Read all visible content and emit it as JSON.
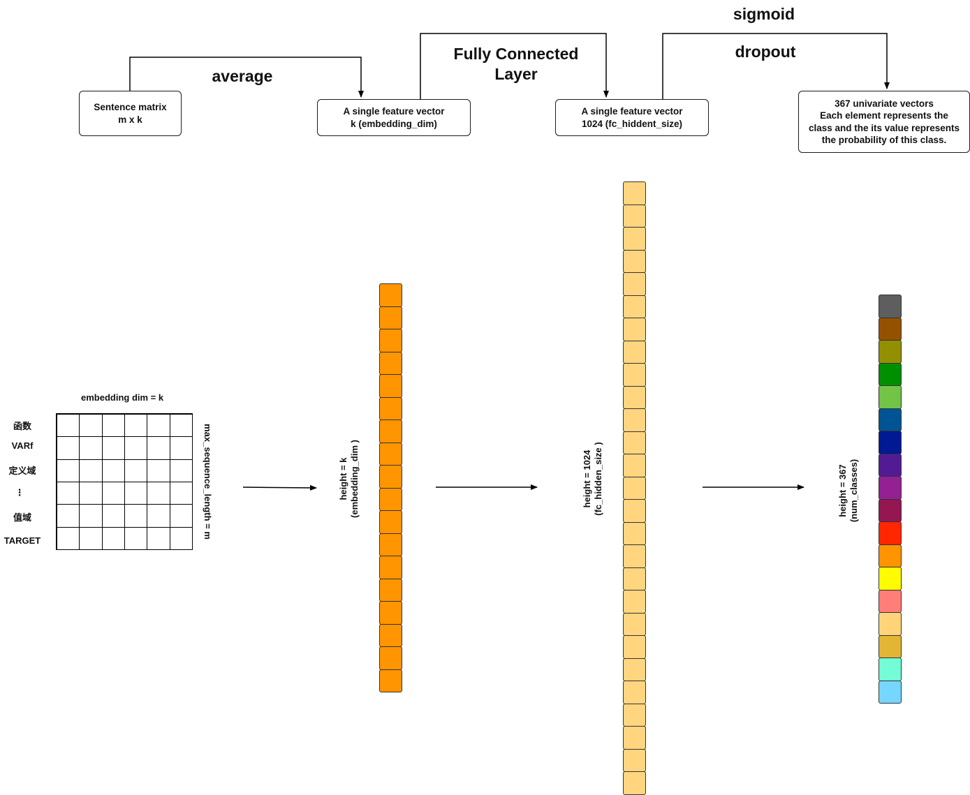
{
  "pipeline": {
    "steps": [
      {
        "name": "average"
      },
      {
        "name": "Fully Connected Layer"
      },
      {
        "name": "sigmoid",
        "name2": "dropout"
      }
    ],
    "boxes": {
      "sentence_matrix": {
        "line1": "Sentence matrix",
        "line2": "m x k"
      },
      "feature_k": {
        "line1": "A single feature vector",
        "line2": "k (embedding_dim)"
      },
      "feature_1024": {
        "line1": "A single feature vector",
        "line2": "1024 (fc_hiddent_size)"
      },
      "output": {
        "line1": "367 univariate vectors",
        "line2": "Each element represents the",
        "line3": "class and the its value represents",
        "line4": "the probability of this class."
      }
    }
  },
  "matrix": {
    "title": "embedding dim = k",
    "side_label": "max_sequence_length = m",
    "rows": [
      "函数",
      "VARf",
      "定义域",
      "⋮",
      "值域",
      "TARGET"
    ],
    "columns": 6
  },
  "vectors": {
    "embedding": {
      "label1": "height = k",
      "label2": "(embedding_dim )",
      "cells": 18,
      "color": "#ff9500"
    },
    "hidden": {
      "label1": "height = 1024",
      "label2": "(fc_hidden_size )",
      "cells": 27,
      "color": "#ffd57f"
    },
    "classes": {
      "label1": "height = 367",
      "label2": "(num_classes)",
      "colors": [
        "#5e5e5e",
        "#945200",
        "#929000",
        "#008f00",
        "#72c447",
        "#005493",
        "#011993",
        "#531b93",
        "#942193",
        "#941751",
        "#ff2600",
        "#ff9300",
        "#fffb00",
        "#ff7e79",
        "#ffd479",
        "#e2b534",
        "#73fcd6",
        "#76d6ff"
      ]
    }
  }
}
